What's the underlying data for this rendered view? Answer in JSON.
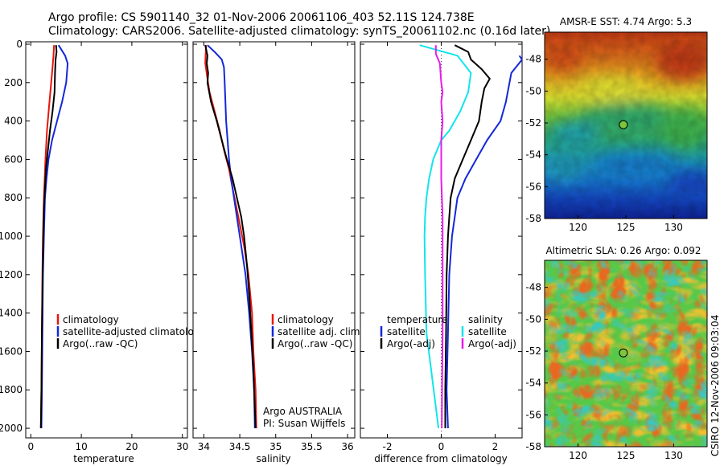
{
  "title_line1": "Argo profile: CS 5901140_32 01-Nov-2006 20061106_403 52.11S 124.738E",
  "title_line2": "Climatology: CARS2006. Satellite-adjusted climatology: synTS_20061102.nc (0.16d later)",
  "footer": "CSIRO 12-Nov-2006 09:03:04",
  "colors": {
    "climatology": "#e8140c",
    "satellite": "#1428d8",
    "argo": "#000000",
    "cyan": "#12e4ec",
    "magenta": "#e81ce8"
  },
  "chart_data": [
    {
      "type": "line",
      "xlabel": "temperature",
      "ylabel": "",
      "xlim": [
        -1,
        31
      ],
      "ylim": [
        2050,
        0
      ],
      "y_reversed": true,
      "xticks": [
        0,
        10,
        20,
        30
      ],
      "yticks": [
        0,
        200,
        400,
        600,
        800,
        1000,
        1200,
        1400,
        1600,
        1800,
        2000
      ],
      "legend": [
        "climatology",
        "satellite-adjusted climatology",
        "Argo(..raw -QC)"
      ],
      "legend_position": "lower-right",
      "series": [
        {
          "name": "climatology",
          "color": "climatology",
          "points": [
            [
              4.6,
              5
            ],
            [
              4.5,
              60
            ],
            [
              4.2,
              150
            ],
            [
              3.7,
              300
            ],
            [
              3.2,
              450
            ],
            [
              2.9,
              600
            ],
            [
              2.6,
              800
            ],
            [
              2.4,
              1000
            ],
            [
              2.3,
              1200
            ],
            [
              2.2,
              1500
            ],
            [
              2.1,
              1800
            ],
            [
              2.0,
              2000
            ]
          ]
        },
        {
          "name": "satellite-adjusted climatology",
          "color": "satellite",
          "points": [
            [
              5.5,
              5
            ],
            [
              6.8,
              60
            ],
            [
              7.3,
              100
            ],
            [
              7.0,
              200
            ],
            [
              6.2,
              300
            ],
            [
              5.2,
              400
            ],
            [
              4.2,
              500
            ],
            [
              3.5,
              600
            ],
            [
              3.1,
              700
            ],
            [
              2.8,
              800
            ],
            [
              2.6,
              1000
            ],
            [
              2.4,
              1200
            ],
            [
              2.3,
              1500
            ],
            [
              2.2,
              1800
            ],
            [
              2.1,
              2000
            ]
          ]
        },
        {
          "name": "Argo(..raw -QC)",
          "color": "argo",
          "points": [
            [
              5.0,
              5
            ],
            [
              5.1,
              40
            ],
            [
              4.9,
              80
            ],
            [
              4.8,
              150
            ],
            [
              4.7,
              250
            ],
            [
              4.3,
              350
            ],
            [
              3.8,
              450
            ],
            [
              3.4,
              550
            ],
            [
              3.0,
              650
            ],
            [
              2.8,
              750
            ],
            [
              2.6,
              850
            ],
            [
              2.5,
              950
            ],
            [
              2.4,
              1100
            ],
            [
              2.3,
              1300
            ],
            [
              2.2,
              1500
            ],
            [
              2.1,
              1800
            ],
            [
              2.0,
              2000
            ]
          ]
        }
      ]
    },
    {
      "type": "line",
      "xlabel": "salinity",
      "ylabel": "",
      "xlim": [
        33.85,
        36.1
      ],
      "ylim": [
        2050,
        0
      ],
      "y_reversed": true,
      "xticks": [
        34,
        34.5,
        35,
        35.5,
        36
      ],
      "legend": [
        "climatology",
        "satellite adj. clim.",
        "Argo(..raw -QC)"
      ],
      "legend_position": "lower-right",
      "annotations": [
        "Argo AUSTRALIA",
        "PI: Susan Wijffels"
      ],
      "series": [
        {
          "name": "climatology",
          "color": "climatology",
          "points": [
            [
              34.03,
              5
            ],
            [
              34.02,
              100
            ],
            [
              34.05,
              180
            ],
            [
              34.08,
              250
            ],
            [
              34.15,
              350
            ],
            [
              34.22,
              450
            ],
            [
              34.28,
              550
            ],
            [
              34.35,
              650
            ],
            [
              34.4,
              750
            ],
            [
              34.48,
              900
            ],
            [
              34.56,
              1050
            ],
            [
              34.62,
              1200
            ],
            [
              34.67,
              1400
            ],
            [
              34.69,
              1600
            ],
            [
              34.72,
              1800
            ],
            [
              34.73,
              2000
            ]
          ]
        },
        {
          "name": "satellite adj. clim.",
          "color": "satellite",
          "points": [
            [
              34.05,
              5
            ],
            [
              34.15,
              40
            ],
            [
              34.25,
              80
            ],
            [
              34.28,
              120
            ],
            [
              34.29,
              200
            ],
            [
              34.3,
              300
            ],
            [
              34.31,
              400
            ],
            [
              34.33,
              500
            ],
            [
              34.35,
              600
            ],
            [
              34.38,
              700
            ],
            [
              34.42,
              800
            ],
            [
              34.46,
              900
            ],
            [
              34.52,
              1050
            ],
            [
              34.58,
              1200
            ],
            [
              34.63,
              1400
            ],
            [
              34.67,
              1600
            ],
            [
              34.7,
              1800
            ],
            [
              34.71,
              2000
            ]
          ]
        },
        {
          "name": "Argo(..raw -QC)",
          "color": "argo",
          "points": [
            [
              34.02,
              5
            ],
            [
              34.05,
              60
            ],
            [
              34.04,
              100
            ],
            [
              34.06,
              150
            ],
            [
              34.05,
              200
            ],
            [
              34.1,
              300
            ],
            [
              34.18,
              400
            ],
            [
              34.25,
              500
            ],
            [
              34.32,
              600
            ],
            [
              34.4,
              700
            ],
            [
              34.46,
              800
            ],
            [
              34.52,
              900
            ],
            [
              34.56,
              1000
            ],
            [
              34.6,
              1150
            ],
            [
              34.63,
              1300
            ],
            [
              34.66,
              1500
            ],
            [
              34.69,
              1700
            ],
            [
              34.71,
              1900
            ],
            [
              34.72,
              2000
            ]
          ]
        }
      ]
    },
    {
      "type": "line",
      "xlabel": "difference from climatology",
      "ylabel": "",
      "xlim": [
        -3,
        3
      ],
      "ylim": [
        2050,
        0
      ],
      "y_reversed": true,
      "xticks": [
        -2,
        0,
        2
      ],
      "zero_line": true,
      "legend_groups": [
        {
          "title": "temperature",
          "items": [
            "satellite",
            "Argo(-adj)"
          ]
        },
        {
          "title": "salinity",
          "items": [
            "satellite",
            "Argo(-adj)"
          ]
        }
      ],
      "legend_position": "lower-right",
      "series": [
        {
          "name": "satellite",
          "group": "temperature",
          "color": "satellite",
          "points": [
            [
              2.9,
              60
            ],
            [
              3.0,
              80
            ],
            [
              2.6,
              150
            ],
            [
              2.4,
              300
            ],
            [
              2.2,
              400
            ],
            [
              1.7,
              500
            ],
            [
              1.3,
              600
            ],
            [
              0.9,
              700
            ],
            [
              0.6,
              800
            ],
            [
              0.5,
              900
            ],
            [
              0.4,
              1000
            ],
            [
              0.3,
              1200
            ],
            [
              0.25,
              1500
            ],
            [
              0.2,
              1800
            ],
            [
              0.25,
              2000
            ]
          ]
        },
        {
          "name": "Argo(-adj)",
          "group": "temperature",
          "color": "argo",
          "points": [
            [
              0.5,
              5
            ],
            [
              1.0,
              40
            ],
            [
              1.1,
              80
            ],
            [
              1.5,
              130
            ],
            [
              1.8,
              180
            ],
            [
              1.6,
              230
            ],
            [
              1.5,
              300
            ],
            [
              1.4,
              400
            ],
            [
              1.1,
              500
            ],
            [
              0.8,
              600
            ],
            [
              0.5,
              700
            ],
            [
              0.35,
              800
            ],
            [
              0.3,
              900
            ],
            [
              0.25,
              1000
            ],
            [
              0.2,
              1200
            ],
            [
              0.18,
              1500
            ],
            [
              0.15,
              1800
            ],
            [
              0.15,
              2000
            ]
          ]
        },
        {
          "name": "satellite",
          "group": "salinity",
          "color": "cyan",
          "points": [
            [
              -0.8,
              5
            ],
            [
              0.6,
              60
            ],
            [
              1.1,
              150
            ],
            [
              1.0,
              250
            ],
            [
              0.7,
              350
            ],
            [
              0.3,
              450
            ],
            [
              0,
              500
            ],
            [
              -0.3,
              600
            ],
            [
              -0.45,
              700
            ],
            [
              -0.55,
              800
            ],
            [
              -0.6,
              900
            ],
            [
              -0.62,
              1000
            ],
            [
              -0.6,
              1200
            ],
            [
              -0.55,
              1500
            ],
            [
              -0.1,
              2000
            ]
          ]
        },
        {
          "name": "Argo(-adj)",
          "group": "salinity",
          "color": "magenta",
          "points": [
            [
              -0.2,
              5
            ],
            [
              -0.2,
              50
            ],
            [
              -0.05,
              100
            ],
            [
              0,
              200
            ],
            [
              0.05,
              250
            ],
            [
              0.0,
              300
            ],
            [
              0.05,
              400
            ],
            [
              0.0,
              500
            ],
            [
              0.0,
              700
            ],
            [
              0.05,
              900
            ],
            [
              0.05,
              1200
            ],
            [
              0.05,
              1500
            ],
            [
              0.03,
              1800
            ],
            [
              0.02,
              2000
            ]
          ]
        }
      ]
    },
    {
      "type": "heatmap",
      "title": "AMSR-E SST: 4.74 Argo: 5.3",
      "xlim": [
        116.5,
        133.5
      ],
      "ylim": [
        -58,
        -46.3
      ],
      "xticks": [
        120,
        125,
        130
      ],
      "yticks": [
        -48,
        -50,
        -52,
        -54,
        -56,
        -58
      ],
      "marker": {
        "lon": 124.738,
        "lat": -52.11
      }
    },
    {
      "type": "heatmap",
      "title": "Altimetric SLA: 0.26 Argo: 0.092",
      "xlim": [
        116.5,
        133.5
      ],
      "ylim": [
        -58,
        -46.3
      ],
      "xticks": [
        120,
        125,
        130
      ],
      "yticks": [
        -48,
        -50,
        -52,
        -54,
        -56,
        -58
      ],
      "marker": {
        "lon": 124.738,
        "lat": -52.11
      }
    }
  ]
}
